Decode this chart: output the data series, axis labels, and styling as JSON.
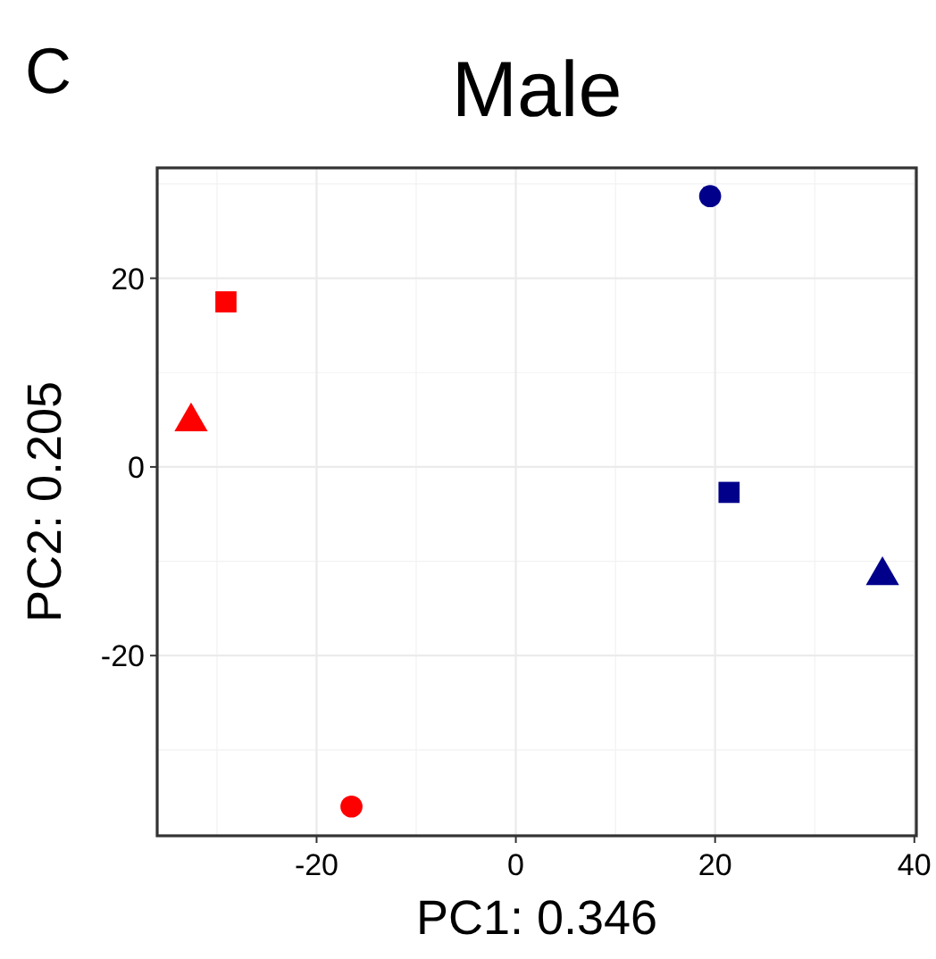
{
  "chart_data": {
    "type": "scatter",
    "title": "Male",
    "xlabel": "PC1: 0.346",
    "ylabel": "PC2: 0.205",
    "annotations": [
      "C"
    ],
    "xlim": [
      -36,
      40.2
    ],
    "ylim": [
      -39.1,
      31.7
    ],
    "xticks": [
      -20,
      0,
      20,
      40
    ],
    "yticks": [
      -20,
      0,
      20
    ],
    "grid": true,
    "series": [
      {
        "marker": "circle",
        "x": [
          -16.5,
          19.5
        ],
        "values": [
          -36.0,
          28.7
        ],
        "colors": [
          "#ff0000",
          "#00008b"
        ]
      },
      {
        "marker": "square",
        "x": [
          -29.1,
          21.4
        ],
        "values": [
          17.5,
          -2.7
        ],
        "colors": [
          "#ff0000",
          "#00008b"
        ]
      },
      {
        "marker": "triangle",
        "x": [
          -32.6,
          36.8
        ],
        "values": [
          4.8,
          -11.5
        ],
        "colors": [
          "#ff0000",
          "#00008b"
        ]
      }
    ]
  }
}
